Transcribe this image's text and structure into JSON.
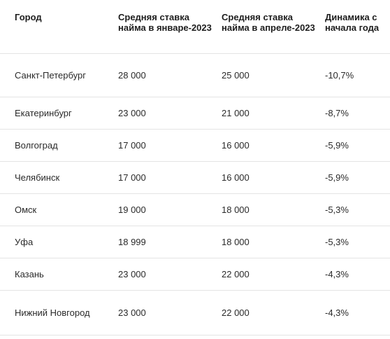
{
  "table": {
    "headers": [
      "Город",
      "Средняя ставка найма в январе-2023",
      "Средняя ставка найма в апреле-2023",
      "Динамика с начала года"
    ],
    "rows": [
      {
        "city": "Санкт-Петербург",
        "jan": "28 000",
        "apr": "25 000",
        "change": "-10,7%"
      },
      {
        "city": "Екатеринбург",
        "jan": "23 000",
        "apr": "21 000",
        "change": "-8,7%"
      },
      {
        "city": "Волгоград",
        "jan": "17 000",
        "apr": "16 000",
        "change": "-5,9%"
      },
      {
        "city": "Челябинск",
        "jan": "17 000",
        "apr": "16 000",
        "change": "-5,9%"
      },
      {
        "city": "Омск",
        "jan": "19 000",
        "apr": "18 000",
        "change": "-5,3%"
      },
      {
        "city": "Уфа",
        "jan": "18 999",
        "apr": "18 000",
        "change": "-5,3%"
      },
      {
        "city": "Казань",
        "jan": "23 000",
        "apr": "22 000",
        "change": "-4,3%"
      },
      {
        "city": "Нижний Новгород",
        "jan": "23 000",
        "apr": "22 000",
        "change": "-4,3%"
      }
    ]
  }
}
